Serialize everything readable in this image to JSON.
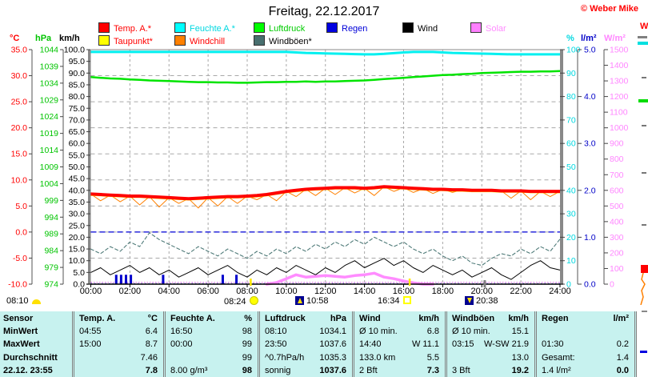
{
  "header": {
    "title": "Freitag, 22.12.2017",
    "copyright": "© Weber Mike"
  },
  "legend": {
    "items": [
      {
        "label": "Temp. A.*",
        "text_color": "#FF0000",
        "box_color": "#FF0000"
      },
      {
        "label": "Feuchte A.*",
        "text_color": "#00D8E0",
        "box_color": "#00FFFF"
      },
      {
        "label": "Luftdruck",
        "text_color": "#00CC00",
        "box_color": "#00FF00"
      },
      {
        "label": "Regen",
        "text_color": "#0000D8",
        "box_color": "#0000E0"
      },
      {
        "label": "Wind",
        "text_color": "#000000",
        "box_color": "#000000"
      },
      {
        "label": "Solar",
        "text_color": "#FF8CFF",
        "box_color": "#FF80FF"
      },
      {
        "label": "Taupunkt*",
        "text_color": "#FF0000",
        "box_color": "#FFFF00"
      },
      {
        "label": "Windchill",
        "text_color": "#FF0000",
        "box_color": "#FF8000"
      },
      {
        "label": "Windböen*",
        "text_color": "#000000",
        "box_color": "#486F6F"
      }
    ]
  },
  "axes_headers": {
    "temp": "°C",
    "pressure": "hPa",
    "wind": "km/h",
    "humidity": "%",
    "rain": "l/m²",
    "solar": "W/m²",
    "extra": "W"
  },
  "chart_data": {
    "type": "line",
    "title": "Freitag, 22.12.2017",
    "x_axis": {
      "min_hour": 0,
      "max_hour": 24,
      "step_hours": 2,
      "labels": [
        "00:00",
        "02:00",
        "04:00",
        "06:00",
        "08:00",
        "10:00",
        "12:00",
        "14:00",
        "16:00",
        "18:00",
        "20:00",
        "22:00",
        "24:00"
      ]
    },
    "axes": {
      "temp": {
        "unit": "°C",
        "min": -10,
        "max": 35,
        "step": 5,
        "decimals": 1,
        "color": "#FF0000"
      },
      "pressure": {
        "unit": "hPa",
        "min": 974,
        "max": 1044,
        "step": 5,
        "decimals": 0,
        "color": "#00C400"
      },
      "wind": {
        "unit": "km/h",
        "min": 0,
        "max": 100,
        "step": 5,
        "decimals": 1,
        "color": "#000000"
      },
      "humidity": {
        "unit": "%",
        "min": 0,
        "max": 100,
        "step": 10,
        "decimals": 0,
        "color": "#00D8E0"
      },
      "rain": {
        "unit": "l/m²",
        "min": 0,
        "max": 5,
        "step": 1,
        "decimals": 1,
        "color": "#0000C8"
      },
      "solar": {
        "unit": "W/m²",
        "min": 0,
        "max": 1500,
        "step": 100,
        "decimals": 0,
        "color": "#FF86FF"
      }
    },
    "sample_interval_minutes": 30,
    "series": [
      {
        "id": "gusts",
        "name": "Windböen*",
        "axis": "wind",
        "color": "#4E7A78",
        "width": 1.1,
        "dash": "4 3",
        "values": [
          15,
          13,
          16,
          14,
          18,
          16,
          21.9,
          19,
          17,
          15,
          13,
          16,
          14,
          12,
          15,
          13,
          11,
          14,
          12,
          15,
          13,
          16,
          14,
          17,
          15,
          18,
          16,
          19,
          17,
          20,
          18,
          16,
          18,
          15,
          13,
          15,
          12,
          10,
          12,
          9,
          8,
          11,
          13,
          12,
          15,
          13,
          16,
          14,
          19.2
        ]
      },
      {
        "id": "wind",
        "name": "Wind",
        "axis": "wind",
        "color": "#000000",
        "width": 1,
        "values": [
          5,
          7,
          4,
          6,
          8,
          5,
          7,
          4,
          6,
          3,
          5,
          7,
          4,
          6,
          8,
          5,
          3,
          6,
          4,
          7,
          5,
          8,
          6,
          4,
          7,
          5,
          8,
          10,
          7,
          9,
          11,
          8,
          10,
          7,
          5,
          8,
          6,
          4,
          6,
          3,
          5,
          7,
          4,
          2,
          5,
          8,
          10,
          7,
          6
        ]
      },
      {
        "id": "solar",
        "name": "Solar",
        "axis": "solar",
        "color": "#FF8CFF",
        "width": 3.5,
        "slice": [
          18,
          35
        ],
        "values": [
          0,
          0,
          0,
          0,
          0,
          0,
          0,
          0,
          0,
          0,
          0,
          0,
          0,
          0,
          0,
          0,
          0,
          0,
          0,
          10,
          35,
          60,
          45,
          50,
          55,
          50,
          45,
          55,
          60,
          70,
          45,
          35,
          20,
          8,
          0,
          0,
          0,
          0,
          0,
          0,
          0,
          0,
          0,
          0,
          0,
          0,
          0,
          0,
          0
        ]
      },
      {
        "id": "windchill",
        "name": "Windchill",
        "axis": "temp",
        "color": "#FF8000",
        "width": 1,
        "values": [
          7.3,
          6.0,
          7.1,
          5.8,
          6.9,
          5.2,
          6.8,
          4.8,
          6.6,
          5.5,
          6.4,
          4.6,
          6.6,
          5.0,
          6.8,
          5.5,
          6.9,
          6.2,
          7.2,
          6.0,
          7.8,
          6.8,
          8.2,
          7.0,
          8.4,
          7.2,
          8.5,
          7.5,
          8.4,
          7.0,
          8.7,
          7.8,
          8.5,
          7.6,
          8.3,
          7.4,
          8.2,
          7.6,
          8.1,
          7.8,
          8.0,
          7.9,
          7.9,
          6.5,
          7.9,
          6.2,
          7.8,
          6.8,
          7.8
        ]
      },
      {
        "id": "dewpoint",
        "name": "Taupunkt*",
        "axis": "temp",
        "color": "#FFFF00",
        "width": 2,
        "values": [
          7.1,
          7.0,
          6.9,
          6.8,
          6.7,
          6.7,
          6.6,
          6.5,
          6.4,
          6.3,
          6.2,
          6.3,
          6.4,
          6.5,
          6.6,
          6.6,
          6.7,
          6.8,
          7.0,
          7.3,
          7.6,
          7.8,
          8.0,
          8.1,
          8.2,
          8.3,
          8.3,
          8.3,
          8.2,
          8.3,
          8.5,
          8.4,
          8.3,
          8.2,
          8.1,
          8.0,
          8.0,
          7.9,
          7.9,
          7.8,
          7.8,
          7.8,
          7.7,
          7.7,
          7.7,
          7.6,
          7.6,
          7.6,
          7.6
        ]
      },
      {
        "id": "pressure",
        "name": "Luftdruck",
        "axis": "pressure",
        "color": "#00E400",
        "width": 2.5,
        "values": [
          1035.8,
          1035.6,
          1035.4,
          1035.3,
          1035.1,
          1035.0,
          1034.8,
          1034.7,
          1034.6,
          1034.5,
          1034.4,
          1034.3,
          1034.3,
          1034.2,
          1034.2,
          1034.1,
          1034.1,
          1034.2,
          1034.3,
          1034.3,
          1034.4,
          1034.4,
          1034.5,
          1034.4,
          1034.5,
          1034.5,
          1034.6,
          1034.7,
          1034.8,
          1035.0,
          1035.2,
          1035.4,
          1035.6,
          1035.8,
          1036.0,
          1036.2,
          1036.4,
          1036.5,
          1036.7,
          1036.8,
          1037.0,
          1037.1,
          1037.2,
          1037.3,
          1037.4,
          1037.4,
          1037.5,
          1037.5,
          1037.6
        ]
      },
      {
        "id": "humidity",
        "name": "Feuchte A.*",
        "axis": "humidity",
        "color": "#00F0F0",
        "width": 3,
        "values": [
          99,
          99,
          99,
          99,
          99,
          99,
          99,
          99,
          99,
          99,
          99,
          99,
          99,
          99,
          99,
          99,
          99,
          99,
          99,
          99,
          99,
          98.8,
          98.6,
          98.5,
          98.4,
          98.3,
          98.2,
          98.1,
          98,
          98,
          98.2,
          98.5,
          98.8,
          99,
          99,
          99,
          98.8,
          98.6,
          98.5,
          98.4,
          98.3,
          98.2,
          98.1,
          98,
          98,
          98,
          98,
          98,
          98
        ]
      },
      {
        "id": "temp",
        "name": "Temp. A.*",
        "axis": "temp",
        "color": "#FF0000",
        "width": 4,
        "values": [
          7.3,
          7.2,
          7.1,
          7.0,
          6.9,
          6.9,
          6.8,
          6.7,
          6.6,
          6.5,
          6.4,
          6.5,
          6.6,
          6.7,
          6.8,
          6.8,
          6.9,
          7.0,
          7.2,
          7.5,
          7.8,
          8.0,
          8.2,
          8.3,
          8.4,
          8.5,
          8.5,
          8.5,
          8.4,
          8.5,
          8.7,
          8.6,
          8.5,
          8.4,
          8.3,
          8.2,
          8.2,
          8.1,
          8.1,
          8.0,
          8.0,
          8.0,
          7.9,
          7.9,
          7.9,
          7.8,
          7.8,
          7.8,
          7.8
        ]
      }
    ],
    "rain_bars": [
      {
        "t": 1.3,
        "v": 0.2
      },
      {
        "t": 1.55,
        "v": 0.2
      },
      {
        "t": 1.8,
        "v": 0.2
      },
      {
        "t": 2.05,
        "v": 0.2
      },
      {
        "t": 3.7,
        "v": 0.2
      },
      {
        "t": 6.75,
        "v": 0.2
      },
      {
        "t": 7.45,
        "v": 0.2
      }
    ],
    "reference_lines": [
      {
        "id": "freezing-line",
        "axis": "temp",
        "value": 0,
        "color": "#0000D8",
        "style": "dashed"
      }
    ],
    "sun_moon_markers": [
      {
        "time": "08:10",
        "icon": "sunrise"
      },
      {
        "time": "08:24",
        "icon": "sun"
      },
      {
        "time": "10:58",
        "icon": "moonrise"
      },
      {
        "time": "16:34",
        "icon": "sun-outline"
      },
      {
        "time": "20:38",
        "icon": "moonset"
      }
    ]
  },
  "table": {
    "row_headers": [
      "Sensor",
      "MinWert",
      "MaxWert",
      "Durchschnitt",
      "22.12. 23:55"
    ],
    "columns": [
      {
        "label": "Temp. A.",
        "unit": "°C",
        "rows": [
          [
            "04:55",
            "6.4"
          ],
          [
            "15:00",
            "8.7"
          ],
          [
            "",
            "7.46"
          ],
          [
            "",
            "7.8"
          ]
        ]
      },
      {
        "label": "Feuchte A.",
        "unit": "%",
        "rows": [
          [
            "16:50",
            "98"
          ],
          [
            "00:00",
            "99"
          ],
          [
            "",
            "99"
          ],
          [
            "8.00 g/m³",
            "98"
          ]
        ]
      },
      {
        "label": "Luftdruck",
        "unit": "hPa",
        "rows": [
          [
            "08:10",
            "1034.1"
          ],
          [
            "23:50",
            "1037.6"
          ],
          [
            "^0.7hPa/h",
            "1035.3"
          ],
          [
            "sonnig",
            "1037.6"
          ]
        ]
      },
      {
        "label": "Wind",
        "unit": "km/h",
        "rows": [
          [
            "Ø 10 min.",
            "6.8"
          ],
          [
            "14:40",
            "W 11.1"
          ],
          [
            "133.0 km",
            "5.5"
          ],
          [
            "2 Bft",
            "7.3"
          ]
        ]
      },
      {
        "label": "Windböen",
        "unit": "km/h",
        "rows": [
          [
            "Ø 10 min.",
            "15.1"
          ],
          [
            "03:15",
            "W-SW 21.9"
          ],
          [
            "",
            "13.0"
          ],
          [
            "3 Bft",
            "19.2"
          ]
        ]
      },
      {
        "label": "Regen",
        "unit": "l/m²",
        "rows": [
          [
            "",
            ""
          ],
          [
            "01:30",
            "0.2"
          ],
          [
            "Gesamt:",
            "1.4"
          ],
          [
            "1.4 l/m²",
            "0.0"
          ]
        ]
      }
    ]
  }
}
